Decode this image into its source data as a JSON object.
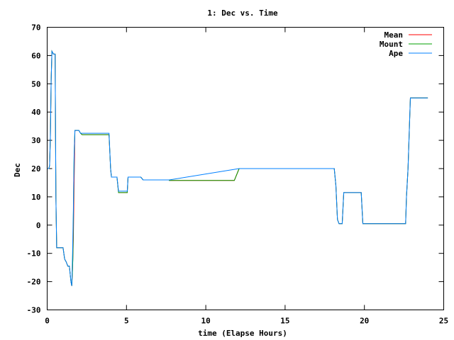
{
  "chart_data": {
    "type": "line",
    "title": "1: Dec vs. Time",
    "xlabel": "time (Elapse Hours)",
    "ylabel": "Dec",
    "xlim": [
      0,
      25
    ],
    "ylim": [
      -30,
      70
    ],
    "x_ticks": [
      0,
      5,
      10,
      15,
      20,
      25
    ],
    "y_ticks": [
      -30,
      -20,
      -10,
      0,
      10,
      20,
      30,
      40,
      50,
      60,
      70
    ],
    "grid": false,
    "legend_position": "top-right",
    "series": [
      {
        "name": "Mean",
        "color": "#ff0000",
        "points": [
          [
            0,
            20
          ],
          [
            0.1,
            20
          ],
          [
            0.15,
            21
          ],
          [
            0.2,
            31
          ],
          [
            0.25,
            51
          ],
          [
            0.3,
            61.5
          ],
          [
            0.4,
            60.5
          ],
          [
            0.5,
            60.5
          ],
          [
            0.55,
            10
          ],
          [
            0.6,
            -8
          ],
          [
            1.0,
            -8
          ],
          [
            1.1,
            -12
          ],
          [
            1.2,
            -13
          ],
          [
            1.3,
            -14.5
          ],
          [
            1.4,
            -14.5
          ],
          [
            1.5,
            -20
          ],
          [
            1.55,
            -21.5
          ],
          [
            1.6,
            -15
          ],
          [
            1.65,
            -5
          ],
          [
            1.7,
            15
          ],
          [
            1.75,
            33.5
          ],
          [
            2.0,
            33.5
          ],
          [
            2.1,
            32.5
          ],
          [
            2.2,
            32
          ],
          [
            3.9,
            32
          ],
          [
            4.0,
            20
          ],
          [
            4.05,
            17
          ],
          [
            4.4,
            17
          ],
          [
            4.5,
            11.5
          ],
          [
            5.05,
            11.5
          ],
          [
            5.1,
            17
          ],
          [
            5.9,
            17
          ],
          [
            6.05,
            16
          ],
          [
            7.7,
            16
          ],
          [
            7.7,
            15.8
          ],
          [
            11.8,
            15.8
          ],
          [
            12.1,
            20
          ],
          [
            18.1,
            20
          ],
          [
            18.2,
            14
          ],
          [
            18.3,
            2
          ],
          [
            18.4,
            0.5
          ],
          [
            18.6,
            0.5
          ],
          [
            18.7,
            11.5
          ],
          [
            19.8,
            11.5
          ],
          [
            19.9,
            0.5
          ],
          [
            22.6,
            0.5
          ],
          [
            22.65,
            10
          ],
          [
            22.75,
            20
          ],
          [
            22.9,
            45
          ],
          [
            23.0,
            45
          ],
          [
            24.0,
            45
          ]
        ]
      },
      {
        "name": "Mount",
        "color": "#00a000",
        "points": [
          [
            0,
            20
          ],
          [
            0.1,
            20
          ],
          [
            0.15,
            21
          ],
          [
            0.2,
            31
          ],
          [
            0.25,
            51
          ],
          [
            0.3,
            61.5
          ],
          [
            0.4,
            60.5
          ],
          [
            0.5,
            60.5
          ],
          [
            0.55,
            10
          ],
          [
            0.6,
            -8
          ],
          [
            1.0,
            -8
          ],
          [
            1.1,
            -12
          ],
          [
            1.2,
            -13
          ],
          [
            1.3,
            -14.5
          ],
          [
            1.4,
            -14.5
          ],
          [
            1.5,
            -20
          ],
          [
            1.55,
            -21.5
          ],
          [
            1.6,
            -15
          ],
          [
            1.62,
            -12
          ],
          [
            1.64,
            -3
          ],
          [
            1.66,
            8
          ],
          [
            1.7,
            25
          ],
          [
            1.75,
            33.5
          ],
          [
            2.0,
            33.5
          ],
          [
            2.1,
            32.5
          ],
          [
            2.2,
            32
          ],
          [
            3.9,
            32
          ],
          [
            4.0,
            20
          ],
          [
            4.05,
            17
          ],
          [
            4.4,
            17
          ],
          [
            4.5,
            11.5
          ],
          [
            5.05,
            11.5
          ],
          [
            5.1,
            17
          ],
          [
            5.9,
            17
          ],
          [
            6.05,
            16
          ],
          [
            7.7,
            16
          ],
          [
            7.7,
            15.8
          ],
          [
            11.8,
            15.8
          ],
          [
            12.1,
            20
          ],
          [
            18.1,
            20
          ],
          [
            18.2,
            14
          ],
          [
            18.3,
            2
          ],
          [
            18.4,
            0.5
          ],
          [
            18.6,
            0.5
          ],
          [
            18.7,
            11.5
          ],
          [
            19.8,
            11.5
          ],
          [
            19.9,
            0.5
          ],
          [
            22.6,
            0.5
          ],
          [
            22.65,
            10
          ],
          [
            22.75,
            20
          ],
          [
            22.9,
            45
          ],
          [
            23.0,
            45
          ],
          [
            24.0,
            45
          ]
        ]
      },
      {
        "name": "Ape",
        "color": "#0080ff",
        "points": [
          [
            0,
            20
          ],
          [
            0.1,
            20
          ],
          [
            0.15,
            21
          ],
          [
            0.2,
            31
          ],
          [
            0.25,
            51
          ],
          [
            0.3,
            61.5
          ],
          [
            0.4,
            60.5
          ],
          [
            0.5,
            60.5
          ],
          [
            0.55,
            10
          ],
          [
            0.6,
            -8
          ],
          [
            1.0,
            -8
          ],
          [
            1.1,
            -12
          ],
          [
            1.2,
            -13
          ],
          [
            1.3,
            -14.5
          ],
          [
            1.4,
            -14.5
          ],
          [
            1.5,
            -20
          ],
          [
            1.55,
            -21.5
          ],
          [
            1.6,
            -10
          ],
          [
            1.65,
            5
          ],
          [
            1.7,
            25
          ],
          [
            1.75,
            33.5
          ],
          [
            2.0,
            33.5
          ],
          [
            2.1,
            32.5
          ],
          [
            2.2,
            32.5
          ],
          [
            3.9,
            32.5
          ],
          [
            4.0,
            20
          ],
          [
            4.05,
            17
          ],
          [
            4.4,
            17
          ],
          [
            4.5,
            12
          ],
          [
            5.05,
            12
          ],
          [
            5.1,
            17
          ],
          [
            5.9,
            17
          ],
          [
            6.05,
            16
          ],
          [
            7.7,
            16
          ],
          [
            12.1,
            20
          ],
          [
            18.1,
            20
          ],
          [
            18.2,
            14
          ],
          [
            18.3,
            2
          ],
          [
            18.4,
            0.5
          ],
          [
            18.6,
            0.5
          ],
          [
            18.7,
            11.5
          ],
          [
            19.8,
            11.5
          ],
          [
            19.9,
            0.5
          ],
          [
            22.6,
            0.5
          ],
          [
            22.65,
            10
          ],
          [
            22.75,
            20
          ],
          [
            22.9,
            45
          ],
          [
            23.0,
            45
          ],
          [
            24.0,
            45
          ]
        ]
      }
    ]
  }
}
